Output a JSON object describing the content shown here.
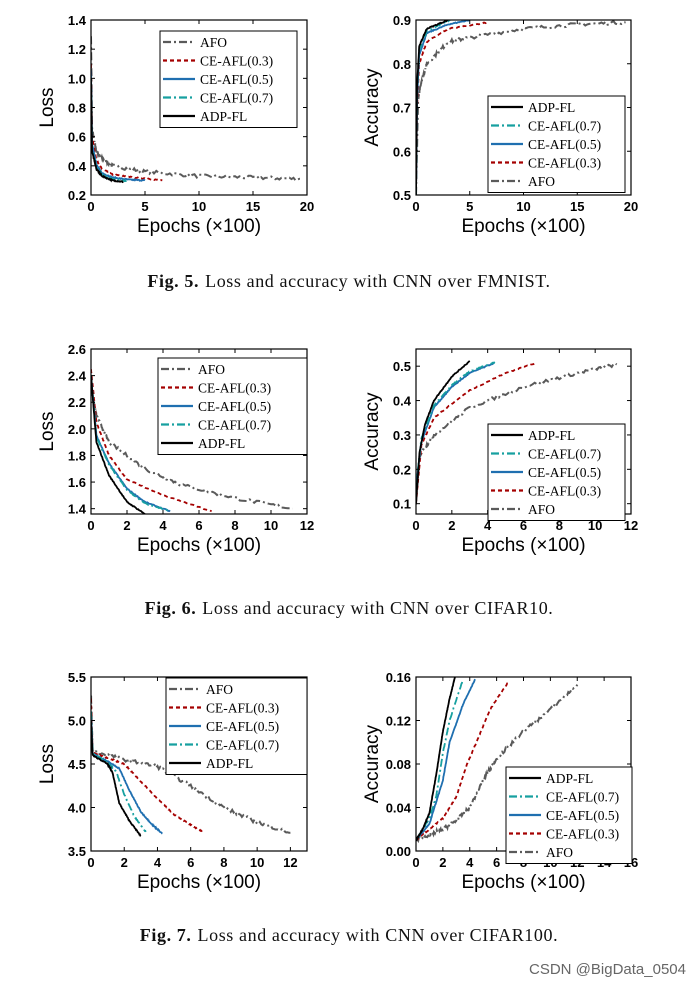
{
  "series_styles": {
    "AFO": {
      "color": "#5a5a5a",
      "dash": "8,3,2,3"
    },
    "CE-AFL(0.3)": {
      "color": "#a50000",
      "dash": "4,3"
    },
    "CE-AFL(0.5)": {
      "color": "#1f6fb0",
      "dash": ""
    },
    "CE-AFL(0.7)": {
      "color": "#17a0a0",
      "dash": "8,3,2,3"
    },
    "ADP-FL": {
      "color": "#000000",
      "dash": ""
    }
  },
  "captions": [
    {
      "label": "Fig. 5.",
      "text": "Loss and accuracy with CNN over FMNIST."
    },
    {
      "label": "Fig. 6.",
      "text": "Loss and accuracy with CNN over CIFAR10."
    },
    {
      "label": "Fig. 7.",
      "text": "Loss and accuracy with CNN over CIFAR100."
    }
  ],
  "watermark": "CSDN @BigData_0504",
  "chart_data": [
    {
      "type": "line",
      "xlabel": "Epochs (×100)",
      "ylabel": "Loss",
      "xlim": [
        0,
        20
      ],
      "ylim": [
        0.2,
        1.4
      ],
      "xticks": [
        "0",
        "5",
        "10",
        "15",
        "20"
      ],
      "xtick_values": [
        0,
        5,
        10,
        15,
        20
      ],
      "yticks": [
        "0.2",
        "0.4",
        "0.6",
        "0.8",
        "1.0",
        "1.2",
        "1.4"
      ],
      "ytick_values": [
        0.2,
        0.4,
        0.6,
        0.8,
        1.0,
        1.2,
        1.4
      ],
      "legend": "top-right",
      "legend_order": [
        "AFO",
        "CE-AFL(0.3)",
        "CE-AFL(0.5)",
        "CE-AFL(0.7)",
        "ADP-FL"
      ],
      "series": [
        {
          "name": "AFO",
          "x": [
            0,
            0.1,
            0.5,
            1,
            2,
            5,
            10,
            15,
            19.5
          ],
          "y": [
            1.3,
            0.65,
            0.5,
            0.45,
            0.4,
            0.36,
            0.33,
            0.32,
            0.31
          ]
        },
        {
          "name": "CE-AFL(0.3)",
          "x": [
            0,
            0.1,
            0.5,
            1,
            2,
            4,
            6.6
          ],
          "y": [
            1.1,
            0.6,
            0.44,
            0.38,
            0.34,
            0.32,
            0.3
          ]
        },
        {
          "name": "CE-AFL(0.5)",
          "x": [
            0,
            0.1,
            0.5,
            1,
            2,
            3.5,
            5
          ],
          "y": [
            1.05,
            0.55,
            0.41,
            0.35,
            0.32,
            0.305,
            0.3
          ]
        },
        {
          "name": "CE-AFL(0.7)",
          "x": [
            0,
            0.1,
            0.5,
            1,
            2,
            3.3
          ],
          "y": [
            1.0,
            0.52,
            0.39,
            0.34,
            0.31,
            0.295
          ]
        },
        {
          "name": "ADP-FL",
          "x": [
            0,
            0.1,
            0.5,
            1,
            2,
            3
          ],
          "y": [
            1.0,
            0.5,
            0.38,
            0.33,
            0.3,
            0.29
          ]
        }
      ]
    },
    {
      "type": "line",
      "xlabel": "Epochs (×100)",
      "ylabel": "Accuracy",
      "xlim": [
        0,
        20
      ],
      "ylim": [
        0.5,
        0.9
      ],
      "xticks": [
        "0",
        "5",
        "10",
        "15",
        "20"
      ],
      "xtick_values": [
        0,
        5,
        10,
        15,
        20
      ],
      "yticks": [
        "0.5",
        "0.6",
        "0.7",
        "0.8",
        "0.9"
      ],
      "ytick_values": [
        0.5,
        0.6,
        0.7,
        0.8,
        0.9
      ],
      "legend": "bottom-right",
      "legend_order": [
        "ADP-FL",
        "CE-AFL(0.7)",
        "CE-AFL(0.5)",
        "CE-AFL(0.3)",
        "AFO"
      ],
      "series": [
        {
          "name": "AFO",
          "x": [
            0,
            0.2,
            0.5,
            1,
            3,
            5,
            10,
            15,
            19.5
          ],
          "y": [
            0.5,
            0.72,
            0.76,
            0.8,
            0.85,
            0.86,
            0.88,
            0.89,
            0.895
          ]
        },
        {
          "name": "CE-AFL(0.3)",
          "x": [
            0,
            0.1,
            0.3,
            1,
            3,
            6.8
          ],
          "y": [
            0.5,
            0.7,
            0.8,
            0.85,
            0.88,
            0.895
          ]
        },
        {
          "name": "CE-AFL(0.5)",
          "x": [
            0,
            0.1,
            0.3,
            1,
            3,
            5
          ],
          "y": [
            0.5,
            0.72,
            0.82,
            0.87,
            0.89,
            0.9
          ]
        },
        {
          "name": "CE-AFL(0.7)",
          "x": [
            0,
            0.1,
            0.3,
            1,
            3.2
          ],
          "y": [
            0.5,
            0.74,
            0.83,
            0.875,
            0.9
          ]
        },
        {
          "name": "ADP-FL",
          "x": [
            0,
            0.1,
            0.3,
            1,
            3
          ],
          "y": [
            0.5,
            0.75,
            0.84,
            0.88,
            0.9
          ]
        }
      ]
    },
    {
      "type": "line",
      "xlabel": "Epochs (×100)",
      "ylabel": "Loss",
      "xlim": [
        0,
        12
      ],
      "ylim": [
        1.36,
        2.6
      ],
      "xticks": [
        "0",
        "2",
        "4",
        "6",
        "8",
        "10",
        "12"
      ],
      "xtick_values": [
        0,
        2,
        4,
        6,
        8,
        10,
        12
      ],
      "yticks": [
        "1.4",
        "1.6",
        "1.8",
        "2.0",
        "2.2",
        "2.4",
        "2.6"
      ],
      "ytick_values": [
        1.4,
        1.6,
        1.8,
        2.0,
        2.2,
        2.4,
        2.6
      ],
      "legend": "top-right",
      "legend_order": [
        "AFO",
        "CE-AFL(0.3)",
        "CE-AFL(0.5)",
        "CE-AFL(0.7)",
        "ADP-FL"
      ],
      "series": [
        {
          "name": "AFO",
          "x": [
            0,
            0.3,
            1,
            3,
            5,
            8,
            11.2
          ],
          "y": [
            2.3,
            2.1,
            1.9,
            1.7,
            1.58,
            1.48,
            1.4
          ]
        },
        {
          "name": "CE-AFL(0.3)",
          "x": [
            0,
            0.3,
            1,
            2,
            4,
            6.7
          ],
          "y": [
            2.45,
            2.05,
            1.8,
            1.62,
            1.5,
            1.38
          ]
        },
        {
          "name": "CE-AFL(0.5)",
          "x": [
            0,
            0.3,
            1,
            2,
            3,
            4.4
          ],
          "y": [
            2.4,
            1.95,
            1.74,
            1.55,
            1.45,
            1.38
          ]
        },
        {
          "name": "CE-AFL(0.7)",
          "x": [
            0,
            0.3,
            1,
            2,
            3,
            4.4
          ],
          "y": [
            2.4,
            1.94,
            1.73,
            1.54,
            1.44,
            1.38
          ]
        },
        {
          "name": "ADP-FL",
          "x": [
            0,
            0.3,
            1,
            2,
            3
          ],
          "y": [
            2.4,
            1.9,
            1.65,
            1.45,
            1.36
          ]
        }
      ]
    },
    {
      "type": "line",
      "xlabel": "Epochs (×100)",
      "ylabel": "Accuracy",
      "xlim": [
        0,
        12
      ],
      "ylim": [
        0.07,
        0.55
      ],
      "xticks": [
        "0",
        "2",
        "4",
        "6",
        "8",
        "10",
        "12"
      ],
      "xtick_values": [
        0,
        2,
        4,
        6,
        8,
        10,
        12
      ],
      "yticks": [
        "0.1",
        "0.2",
        "0.3",
        "0.4",
        "0.5"
      ],
      "ytick_values": [
        0.1,
        0.2,
        0.3,
        0.4,
        0.5
      ],
      "legend": "bottom-right",
      "legend_order": [
        "ADP-FL",
        "CE-AFL(0.7)",
        "CE-AFL(0.5)",
        "CE-AFL(0.3)",
        "AFO"
      ],
      "series": [
        {
          "name": "AFO",
          "x": [
            0,
            0.2,
            1,
            3,
            6,
            9,
            11.2
          ],
          "y": [
            0.1,
            0.24,
            0.3,
            0.38,
            0.44,
            0.48,
            0.505
          ]
        },
        {
          "name": "CE-AFL(0.3)",
          "x": [
            0,
            0.3,
            1,
            3,
            5,
            6.7
          ],
          "y": [
            0.1,
            0.27,
            0.35,
            0.43,
            0.48,
            0.51
          ]
        },
        {
          "name": "CE-AFL(0.5)",
          "x": [
            0,
            0.3,
            1,
            2,
            3,
            4.4
          ],
          "y": [
            0.15,
            0.28,
            0.38,
            0.44,
            0.48,
            0.51
          ]
        },
        {
          "name": "CE-AFL(0.7)",
          "x": [
            0,
            0.3,
            1,
            2,
            3,
            4.4
          ],
          "y": [
            0.15,
            0.29,
            0.385,
            0.445,
            0.485,
            0.512
          ]
        },
        {
          "name": "ADP-FL",
          "x": [
            0,
            0.2,
            0.5,
            1,
            2,
            3
          ],
          "y": [
            0.1,
            0.25,
            0.33,
            0.4,
            0.47,
            0.515
          ]
        }
      ]
    },
    {
      "type": "line",
      "xlabel": "Epochs (×100)",
      "ylabel": "Loss",
      "xlim": [
        0,
        13
      ],
      "ylim": [
        3.5,
        5.5
      ],
      "xticks": [
        "0",
        "2",
        "4",
        "6",
        "8",
        "10",
        "12"
      ],
      "xtick_values": [
        0,
        2,
        4,
        6,
        8,
        10,
        12
      ],
      "yticks": [
        "3.5",
        "4.0",
        "4.5",
        "5.0",
        "5.5"
      ],
      "ytick_values": [
        3.5,
        4.0,
        4.5,
        5.0,
        5.5
      ],
      "legend": "top-right",
      "legend_order": [
        "AFO",
        "CE-AFL(0.3)",
        "CE-AFL(0.5)",
        "CE-AFL(0.7)",
        "ADP-FL"
      ],
      "series": [
        {
          "name": "AFO",
          "x": [
            0,
            0.1,
            2,
            4,
            6,
            8,
            10,
            12
          ],
          "y": [
            5.3,
            4.65,
            4.55,
            4.47,
            4.25,
            4.0,
            3.83,
            3.71
          ]
        },
        {
          "name": "CE-AFL(0.3)",
          "x": [
            0,
            0.1,
            1,
            2,
            3,
            4,
            5,
            6,
            6.8
          ],
          "y": [
            5.25,
            4.63,
            4.57,
            4.5,
            4.3,
            4.1,
            3.92,
            3.8,
            3.71
          ]
        },
        {
          "name": "CE-AFL(0.5)",
          "x": [
            0,
            0.1,
            1,
            1.7,
            2.3,
            3,
            3.7,
            4.3
          ],
          "y": [
            5.1,
            4.62,
            4.53,
            4.45,
            4.2,
            3.95,
            3.8,
            3.7
          ]
        },
        {
          "name": "CE-AFL(0.7)",
          "x": [
            0,
            0.1,
            1,
            1.5,
            2,
            2.6,
            3.3
          ],
          "y": [
            5.1,
            4.62,
            4.52,
            4.42,
            4.15,
            3.9,
            3.72
          ]
        },
        {
          "name": "ADP-FL",
          "x": [
            0,
            0.1,
            1,
            1.3,
            1.7,
            2.3,
            3
          ],
          "y": [
            5.0,
            4.6,
            4.5,
            4.4,
            4.05,
            3.85,
            3.67
          ]
        }
      ]
    },
    {
      "type": "line",
      "xlabel": "Epochs (×100)",
      "ylabel": "Accuracy",
      "xlim": [
        0,
        16
      ],
      "ylim": [
        0,
        0.16
      ],
      "xticks": [
        "0",
        "2",
        "4",
        "6",
        "8",
        "10",
        "12",
        "14",
        "16"
      ],
      "xtick_values": [
        0,
        2,
        4,
        6,
        8,
        10,
        12,
        14,
        16
      ],
      "yticks": [
        "0.00",
        "0.04",
        "0.08",
        "0.12",
        "0.16"
      ],
      "ytick_values": [
        0,
        0.04,
        0.08,
        0.12,
        0.16
      ],
      "legend": "bottom-right",
      "legend_order": [
        "ADP-FL",
        "CE-AFL(0.7)",
        "CE-AFL(0.5)",
        "CE-AFL(0.3)",
        "AFO"
      ],
      "series": [
        {
          "name": "AFO",
          "x": [
            0,
            1,
            2,
            3,
            4,
            5,
            6,
            8,
            10,
            12
          ],
          "y": [
            0.01,
            0.015,
            0.02,
            0.028,
            0.04,
            0.065,
            0.085,
            0.11,
            0.13,
            0.153
          ]
        },
        {
          "name": "CE-AFL(0.3)",
          "x": [
            0,
            1,
            2,
            3,
            3.8,
            4.5,
            5.5,
            6.9
          ],
          "y": [
            0.01,
            0.02,
            0.03,
            0.05,
            0.08,
            0.1,
            0.13,
            0.156
          ]
        },
        {
          "name": "CE-AFL(0.5)",
          "x": [
            0,
            1,
            2,
            2.5,
            3.5,
            4.4
          ],
          "y": [
            0.01,
            0.025,
            0.065,
            0.1,
            0.135,
            0.158
          ]
        },
        {
          "name": "CE-AFL(0.7)",
          "x": [
            0,
            1,
            1.5,
            2,
            2.5,
            3.5
          ],
          "y": [
            0.01,
            0.03,
            0.05,
            0.09,
            0.12,
            0.158
          ]
        },
        {
          "name": "ADP-FL",
          "x": [
            0,
            0.5,
            1,
            1.5,
            2,
            2.5,
            2.9
          ],
          "y": [
            0.01,
            0.02,
            0.035,
            0.07,
            0.11,
            0.14,
            0.16
          ]
        }
      ]
    }
  ]
}
